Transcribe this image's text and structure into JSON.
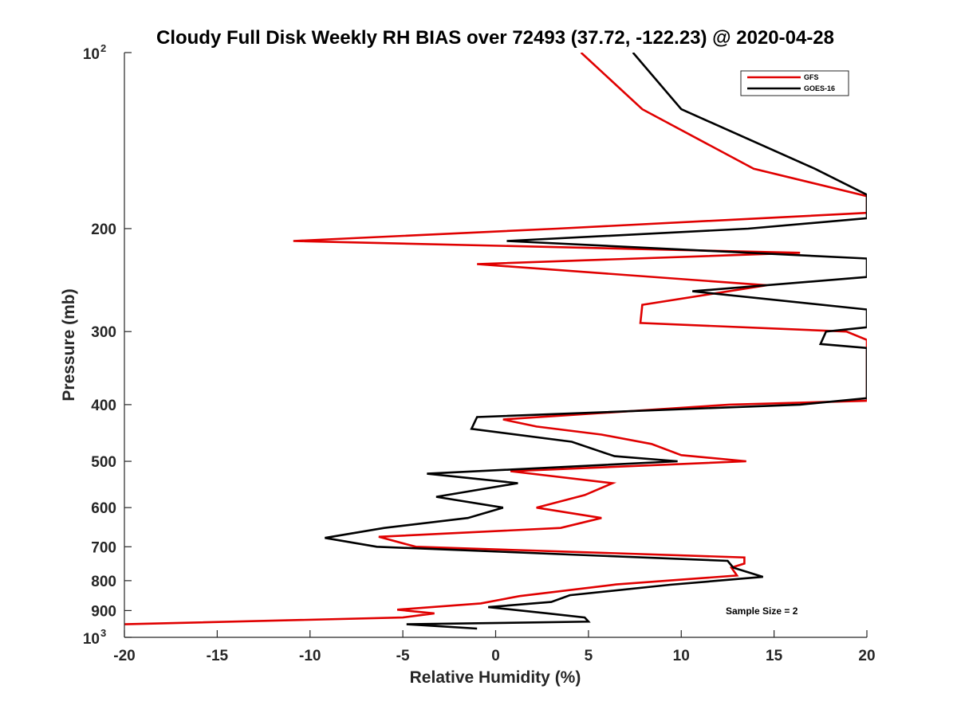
{
  "chart_data": {
    "type": "line",
    "title": "Cloudy Full Disk Weekly RH BIAS over 72493 (37.72, -122.23) @ 2020-04-28",
    "xlabel": "Relative Humidity (%)",
    "ylabel": "Pressure (mb)",
    "xlim": [
      -20,
      20
    ],
    "ylim": [
      100,
      1000
    ],
    "y_scale": "log",
    "y_reversed": true,
    "grid": false,
    "x_ticks": [
      "-20",
      "-15",
      "-10",
      "-5",
      "0",
      "5",
      "10",
      "15",
      "20"
    ],
    "y_ticks": [
      {
        "value": 100,
        "base": "10",
        "exp": "2"
      },
      {
        "value": 200,
        "text": "200"
      },
      {
        "value": 300,
        "text": "300"
      },
      {
        "value": 400,
        "text": "400"
      },
      {
        "value": 500,
        "text": "500"
      },
      {
        "value": 600,
        "text": "600"
      },
      {
        "value": 700,
        "text": "700"
      },
      {
        "value": 800,
        "text": "800"
      },
      {
        "value": 900,
        "text": "900"
      },
      {
        "value": 1000,
        "base": "10",
        "exp": "3"
      }
    ],
    "legend_position": "top-right",
    "annotation": "Sample Size = 2",
    "series": [
      {
        "name": "GFS",
        "color": "#e00000",
        "points": [
          [
            4.6,
            100
          ],
          [
            7.9,
            125
          ],
          [
            13.9,
            158
          ],
          [
            20.0,
            176
          ],
          [
            20.0,
            176
          ],
          [
            20.0,
            188
          ],
          [
            3.3,
            200
          ],
          [
            -10.9,
            210
          ],
          [
            16.4,
            220
          ],
          [
            -1.0,
            230
          ],
          [
            14.6,
            250
          ],
          [
            7.9,
            270
          ],
          [
            7.8,
            290
          ],
          [
            18.9,
            300
          ],
          [
            20.0,
            310
          ],
          [
            20.0,
            385
          ],
          [
            20.0,
            394
          ],
          [
            12.6,
            400
          ],
          [
            0.4,
            424
          ],
          [
            2.2,
            436
          ],
          [
            5.7,
            450
          ],
          [
            8.4,
            467
          ],
          [
            10.0,
            488
          ],
          [
            13.5,
            500
          ],
          [
            0.8,
            520
          ],
          [
            6.3,
            545
          ],
          [
            4.8,
            571
          ],
          [
            2.2,
            600
          ],
          [
            5.7,
            625
          ],
          [
            3.5,
            650
          ],
          [
            -6.3,
            673
          ],
          [
            -4.3,
            700
          ],
          [
            13.4,
            730
          ],
          [
            13.4,
            748
          ],
          [
            12.7,
            760
          ],
          [
            13.0,
            784
          ],
          [
            6.5,
            812
          ],
          [
            1.3,
            850
          ],
          [
            -0.8,
            875
          ],
          [
            -5.3,
            897
          ],
          [
            -3.3,
            910
          ],
          [
            -5.0,
            925
          ],
          [
            -20.0,
            950
          ]
        ]
      },
      {
        "name": "GOES-16",
        "color": "#000000",
        "points": [
          [
            7.4,
            100
          ],
          [
            10.0,
            125
          ],
          [
            17.2,
            158
          ],
          [
            20.0,
            175
          ],
          [
            20.0,
            175
          ],
          [
            20.0,
            192
          ],
          [
            13.6,
            200
          ],
          [
            0.6,
            210
          ],
          [
            20.0,
            225
          ],
          [
            20.0,
            242
          ],
          [
            10.6,
            256
          ],
          [
            20.0,
            275
          ],
          [
            20.0,
            295
          ],
          [
            17.8,
            300
          ],
          [
            17.5,
            315
          ],
          [
            20.0,
            320
          ],
          [
            20.0,
            390
          ],
          [
            16.4,
            400
          ],
          [
            -1.0,
            420
          ],
          [
            -1.3,
            440
          ],
          [
            4.1,
            463
          ],
          [
            6.4,
            490
          ],
          [
            9.8,
            500
          ],
          [
            -3.7,
            525
          ],
          [
            1.2,
            545
          ],
          [
            -3.2,
            575
          ],
          [
            0.4,
            600
          ],
          [
            -1.5,
            625
          ],
          [
            -6.0,
            650
          ],
          [
            -9.2,
            676
          ],
          [
            -6.4,
            700
          ],
          [
            12.5,
            740
          ],
          [
            12.8,
            760
          ],
          [
            14.4,
            788
          ],
          [
            9.4,
            813
          ],
          [
            4.0,
            847
          ],
          [
            3.0,
            870
          ],
          [
            -0.4,
            888
          ],
          [
            2.8,
            910
          ],
          [
            4.8,
            925
          ],
          [
            5.0,
            940
          ],
          [
            -4.8,
            950
          ],
          [
            -1.0,
            966
          ]
        ]
      }
    ]
  }
}
